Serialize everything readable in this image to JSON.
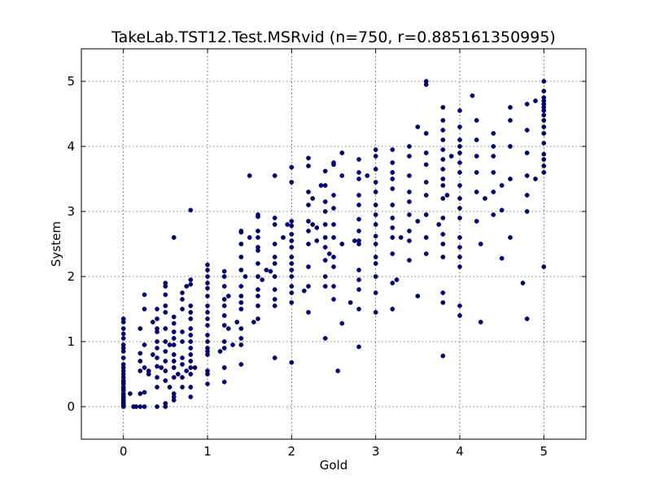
{
  "chart_data": {
    "type": "scatter",
    "title": "TakeLab.TST12.Test.MSRvid (n=750, r=0.885161350995)",
    "xlabel": "Gold",
    "ylabel": "System",
    "xlim": [
      -0.5,
      5.5
    ],
    "ylim": [
      -0.5,
      5.5
    ],
    "xticks": [
      "0",
      "1",
      "2",
      "3",
      "4",
      "5"
    ],
    "yticks": [
      "0",
      "1",
      "2",
      "3",
      "4",
      "5"
    ],
    "grid": true,
    "point_color": "#00007a",
    "points": [
      [
        0,
        0
      ],
      [
        0,
        0.02
      ],
      [
        0,
        0.05
      ],
      [
        0,
        0.08
      ],
      [
        0,
        0.12
      ],
      [
        0,
        0.15
      ],
      [
        0,
        0.2
      ],
      [
        0,
        0.25
      ],
      [
        0,
        0.3
      ],
      [
        0,
        0.35
      ],
      [
        0,
        0.4
      ],
      [
        0,
        0.45
      ],
      [
        0,
        0.5
      ],
      [
        0,
        0.55
      ],
      [
        0,
        0.65
      ],
      [
        0,
        0.75
      ],
      [
        0,
        0.85
      ],
      [
        0,
        0.95
      ],
      [
        0,
        1.05
      ],
      [
        0,
        1.12
      ],
      [
        0,
        1.2
      ],
      [
        0,
        1.3
      ],
      [
        0,
        1.35
      ],
      [
        0,
        0.1
      ],
      [
        0,
        0.18
      ],
      [
        0,
        0.28
      ],
      [
        0,
        0.38
      ],
      [
        0,
        0.6
      ],
      [
        0,
        0.9
      ],
      [
        0.08,
        0.2
      ],
      [
        0.12,
        0
      ],
      [
        0.15,
        0
      ],
      [
        0.2,
        0.55
      ],
      [
        0.2,
        0.7
      ],
      [
        0.2,
        0.82
      ],
      [
        0.2,
        0.2
      ],
      [
        0.2,
        1.2
      ],
      [
        0.2,
        0
      ],
      [
        0.25,
        0.95
      ],
      [
        0.25,
        1.5
      ],
      [
        0.25,
        1.72
      ],
      [
        0.25,
        0.6
      ],
      [
        0.25,
        0.22
      ],
      [
        0.25,
        0
      ],
      [
        0.3,
        0.5
      ],
      [
        0.3,
        0.55
      ],
      [
        0.35,
        0.8
      ],
      [
        0.35,
        1.3
      ],
      [
        0.4,
        0.3
      ],
      [
        0.4,
        0.45
      ],
      [
        0.4,
        0.62
      ],
      [
        0.4,
        0.75
      ],
      [
        0.4,
        0.9
      ],
      [
        0.4,
        1.0
      ],
      [
        0.4,
        1.15
      ],
      [
        0.4,
        1.35
      ],
      [
        0.4,
        1.5
      ],
      [
        0.4,
        1.2
      ],
      [
        0.4,
        0
      ],
      [
        0.45,
        0.6
      ],
      [
        0.5,
        0.05
      ],
      [
        0.5,
        0.4
      ],
      [
        0.5,
        0.55
      ],
      [
        0.5,
        0.7
      ],
      [
        0.5,
        0.85
      ],
      [
        0.5,
        1.0
      ],
      [
        0.5,
        1.2
      ],
      [
        0.5,
        1.45
      ],
      [
        0.5,
        1.55
      ],
      [
        0.5,
        1.72
      ],
      [
        0.5,
        1.85
      ],
      [
        0.5,
        1.9
      ],
      [
        0.5,
        0
      ],
      [
        0.55,
        0.3
      ],
      [
        0.55,
        0.95
      ],
      [
        0.6,
        0.1
      ],
      [
        0.6,
        0.15
      ],
      [
        0.6,
        0.2
      ],
      [
        0.6,
        0.45
      ],
      [
        0.6,
        0.6
      ],
      [
        0.6,
        0.7
      ],
      [
        0.6,
        0.8
      ],
      [
        0.6,
        0.95
      ],
      [
        0.6,
        1.05
      ],
      [
        0.6,
        1.15
      ],
      [
        0.6,
        1.28
      ],
      [
        0.6,
        1.38
      ],
      [
        0.6,
        2.6
      ],
      [
        0.65,
        0.5
      ],
      [
        0.7,
        0.45
      ],
      [
        0.7,
        0.65
      ],
      [
        0.7,
        0.75
      ],
      [
        0.7,
        1.0
      ],
      [
        0.7,
        1.15
      ],
      [
        0.7,
        1.5
      ],
      [
        0.7,
        1.65
      ],
      [
        0.7,
        1.75
      ],
      [
        0.7,
        0.3
      ],
      [
        0.75,
        1.85
      ],
      [
        0.75,
        0.55
      ],
      [
        0.8,
        0.15
      ],
      [
        0.8,
        0.3
      ],
      [
        0.8,
        0.5
      ],
      [
        0.8,
        0.6
      ],
      [
        0.8,
        0.7
      ],
      [
        0.8,
        0.8
      ],
      [
        0.8,
        0.9
      ],
      [
        0.8,
        1.0
      ],
      [
        0.8,
        1.1
      ],
      [
        0.8,
        1.2
      ],
      [
        0.8,
        1.35
      ],
      [
        0.8,
        1.45
      ],
      [
        0.8,
        1.55
      ],
      [
        0.8,
        1.88
      ],
      [
        0.8,
        1.95
      ],
      [
        0.8,
        3.02
      ],
      [
        0.85,
        0.6
      ],
      [
        1,
        0.35
      ],
      [
        1,
        0.5
      ],
      [
        1,
        0.55
      ],
      [
        1,
        0.8
      ],
      [
        1,
        0.85
      ],
      [
        1,
        0.9
      ],
      [
        1,
        1.0
      ],
      [
        1,
        1.1
      ],
      [
        1,
        1.25
      ],
      [
        1,
        1.35
      ],
      [
        1,
        1.45
      ],
      [
        1,
        1.55
      ],
      [
        1,
        1.7
      ],
      [
        1,
        1.82
      ],
      [
        1,
        1.9
      ],
      [
        1,
        2.0
      ],
      [
        1,
        2.1
      ],
      [
        1,
        2.18
      ],
      [
        1.15,
        0.85
      ],
      [
        1.2,
        0.38
      ],
      [
        1.2,
        0.6
      ],
      [
        1.2,
        0.9
      ],
      [
        1.2,
        1.0
      ],
      [
        1.2,
        1.25
      ],
      [
        1.2,
        1.4
      ],
      [
        1.2,
        1.55
      ],
      [
        1.2,
        1.65
      ],
      [
        1.2,
        1.85
      ],
      [
        1.2,
        2.0
      ],
      [
        1.2,
        2.08
      ],
      [
        1.25,
        1.2
      ],
      [
        1.25,
        1.7
      ],
      [
        1.3,
        0.95
      ],
      [
        1.35,
        1.3
      ],
      [
        1.4,
        0.65
      ],
      [
        1.4,
        0.95
      ],
      [
        1.4,
        1.05
      ],
      [
        1.4,
        1.2
      ],
      [
        1.4,
        1.5
      ],
      [
        1.4,
        1.6
      ],
      [
        1.4,
        1.7
      ],
      [
        1.4,
        1.85
      ],
      [
        1.4,
        2.1
      ],
      [
        1.4,
        2.3
      ],
      [
        1.4,
        2.5
      ],
      [
        1.4,
        2.68
      ],
      [
        1.4,
        2.7
      ],
      [
        1.45,
        2.0
      ],
      [
        1.5,
        3.55
      ],
      [
        1.5,
        2.6
      ],
      [
        1.55,
        1.3
      ],
      [
        1.6,
        1.35
      ],
      [
        1.6,
        1.55
      ],
      [
        1.6,
        1.7
      ],
      [
        1.6,
        1.8
      ],
      [
        1.6,
        2.0
      ],
      [
        1.6,
        2.2
      ],
      [
        1.6,
        2.4
      ],
      [
        1.6,
        2.45
      ],
      [
        1.6,
        2.6
      ],
      [
        1.6,
        2.7
      ],
      [
        1.6,
        2.92
      ],
      [
        1.6,
        2.95
      ],
      [
        1.65,
        1.95
      ],
      [
        1.7,
        2.1
      ],
      [
        1.75,
        2.08
      ],
      [
        1.8,
        0.75
      ],
      [
        1.8,
        1.55
      ],
      [
        1.8,
        1.65
      ],
      [
        1.8,
        1.8
      ],
      [
        1.8,
        2.0
      ],
      [
        1.8,
        2.2
      ],
      [
        1.8,
        2.3
      ],
      [
        1.8,
        2.5
      ],
      [
        1.8,
        2.8
      ],
      [
        1.8,
        2.9
      ],
      [
        1.8,
        3.55
      ],
      [
        1.9,
        2.6
      ],
      [
        1.95,
        2.8
      ],
      [
        2,
        0.68
      ],
      [
        2,
        1.6
      ],
      [
        2,
        1.75
      ],
      [
        2,
        1.85
      ],
      [
        2,
        2.0
      ],
      [
        2,
        2.1
      ],
      [
        2,
        2.2
      ],
      [
        2,
        2.3
      ],
      [
        2,
        2.45
      ],
      [
        2,
        2.55
      ],
      [
        2,
        2.65
      ],
      [
        2,
        2.78
      ],
      [
        2,
        2.85
      ],
      [
        2,
        3.45
      ],
      [
        2,
        3.68
      ],
      [
        2.15,
        1.78
      ],
      [
        2.2,
        1.45
      ],
      [
        2.2,
        1.85
      ],
      [
        2.2,
        2.15
      ],
      [
        2.2,
        2.5
      ],
      [
        2.2,
        2.7
      ],
      [
        2.2,
        2.85
      ],
      [
        2.2,
        3.1
      ],
      [
        2.2,
        3.3
      ],
      [
        2.2,
        3.7
      ],
      [
        2.2,
        3.82
      ],
      [
        2.25,
        2.8
      ],
      [
        2.25,
        3.2
      ],
      [
        2.3,
        2.55
      ],
      [
        2.3,
        2.75
      ],
      [
        2.35,
        3.4
      ],
      [
        2.4,
        1.05
      ],
      [
        2.4,
        1.85
      ],
      [
        2.4,
        2.0
      ],
      [
        2.4,
        2.25
      ],
      [
        2.4,
        2.45
      ],
      [
        2.4,
        2.6
      ],
      [
        2.4,
        2.8
      ],
      [
        2.4,
        3.0
      ],
      [
        2.4,
        3.15
      ],
      [
        2.4,
        3.4
      ],
      [
        2.4,
        3.62
      ],
      [
        2.45,
        2.35
      ],
      [
        2.5,
        1.65
      ],
      [
        2.5,
        1.85
      ],
      [
        2.5,
        2.15
      ],
      [
        2.5,
        2.3
      ],
      [
        2.5,
        2.6
      ],
      [
        2.5,
        2.8
      ],
      [
        2.5,
        3.05
      ],
      [
        2.5,
        3.25
      ],
      [
        2.5,
        3.72
      ],
      [
        2.5,
        3.75
      ],
      [
        2.55,
        0.55
      ],
      [
        2.6,
        1.28
      ],
      [
        2.6,
        2.5
      ],
      [
        2.6,
        3.55
      ],
      [
        2.6,
        3.9
      ],
      [
        2.7,
        1.6
      ],
      [
        2.8,
        0.92
      ],
      [
        2.8,
        1.5
      ],
      [
        2.8,
        1.8
      ],
      [
        2.8,
        1.95
      ],
      [
        2.8,
        2.1
      ],
      [
        2.8,
        2.5
      ],
      [
        2.8,
        2.55
      ],
      [
        2.8,
        2.7
      ],
      [
        2.8,
        2.88
      ],
      [
        2.8,
        3.1
      ],
      [
        2.8,
        3.25
      ],
      [
        2.8,
        3.5
      ],
      [
        2.8,
        3.6
      ],
      [
        2.8,
        3.8
      ],
      [
        2.75,
        2.55
      ],
      [
        2.9,
        3.55
      ],
      [
        3,
        1.45
      ],
      [
        3,
        1.75
      ],
      [
        3,
        2.0
      ],
      [
        3,
        2.2
      ],
      [
        3,
        2.3
      ],
      [
        3,
        2.5
      ],
      [
        3,
        2.62
      ],
      [
        3,
        2.8
      ],
      [
        3,
        2.95
      ],
      [
        3,
        3.1
      ],
      [
        3,
        3.3
      ],
      [
        3,
        3.45
      ],
      [
        3,
        3.65
      ],
      [
        3,
        3.85
      ],
      [
        3,
        3.95
      ],
      [
        3.2,
        1.5
      ],
      [
        3.2,
        1.9
      ],
      [
        3.2,
        2.35
      ],
      [
        3.2,
        2.6
      ],
      [
        3.2,
        2.75
      ],
      [
        3.2,
        2.9
      ],
      [
        3.2,
        3.1
      ],
      [
        3.2,
        3.35
      ],
      [
        3.2,
        3.5
      ],
      [
        3.2,
        3.6
      ],
      [
        3.2,
        3.75
      ],
      [
        3.2,
        3.95
      ],
      [
        3.25,
        1.95
      ],
      [
        3.3,
        2.6
      ],
      [
        3.4,
        2.55
      ],
      [
        3.4,
        2.7
      ],
      [
        3.4,
        2.95
      ],
      [
        3.4,
        3.15
      ],
      [
        3.4,
        3.3
      ],
      [
        3.4,
        3.55
      ],
      [
        3.4,
        3.85
      ],
      [
        3.4,
        4.0
      ],
      [
        3.4,
        2.25
      ],
      [
        3.5,
        1.7
      ],
      [
        3.5,
        2.85
      ],
      [
        3.5,
        4.3
      ],
      [
        3.6,
        2.35
      ],
      [
        3.6,
        2.6
      ],
      [
        3.6,
        2.95
      ],
      [
        3.6,
        3.25
      ],
      [
        3.6,
        3.45
      ],
      [
        3.6,
        3.72
      ],
      [
        3.6,
        3.9
      ],
      [
        3.6,
        4.2
      ],
      [
        3.6,
        4.95
      ],
      [
        3.6,
        5.0
      ],
      [
        3.75,
        2.8
      ],
      [
        3.8,
        0.78
      ],
      [
        3.8,
        1.6
      ],
      [
        3.8,
        1.75
      ],
      [
        3.8,
        2.3
      ],
      [
        3.8,
        2.5
      ],
      [
        3.8,
        2.65
      ],
      [
        3.8,
        2.9
      ],
      [
        3.8,
        3.2
      ],
      [
        3.8,
        3.4
      ],
      [
        3.8,
        3.5
      ],
      [
        3.8,
        3.65
      ],
      [
        3.8,
        3.8
      ],
      [
        3.8,
        3.95
      ],
      [
        3.8,
        4.1
      ],
      [
        3.8,
        4.25
      ],
      [
        3.8,
        4.4
      ],
      [
        3.8,
        4.6
      ],
      [
        3.85,
        3.25
      ],
      [
        3.9,
        3.85
      ],
      [
        4,
        1.4
      ],
      [
        4,
        1.55
      ],
      [
        4,
        2.15
      ],
      [
        4,
        2.3
      ],
      [
        4,
        2.45
      ],
      [
        4,
        2.6
      ],
      [
        4,
        2.9
      ],
      [
        4,
        3.05
      ],
      [
        4,
        3.2
      ],
      [
        4,
        3.4
      ],
      [
        4,
        3.6
      ],
      [
        4,
        3.75
      ],
      [
        4,
        3.9
      ],
      [
        4,
        4.0
      ],
      [
        4,
        4.1
      ],
      [
        4,
        4.3
      ],
      [
        4,
        4.55
      ],
      [
        4.15,
        4.78
      ],
      [
        4.2,
        2.85
      ],
      [
        4.2,
        3.3
      ],
      [
        4.2,
        3.6
      ],
      [
        4.2,
        3.85
      ],
      [
        4.2,
        4.1
      ],
      [
        4.2,
        4.4
      ],
      [
        4.25,
        1.3
      ],
      [
        4.25,
        2.5
      ],
      [
        4.3,
        3.2
      ],
      [
        4.4,
        2.95
      ],
      [
        4.4,
        3.3
      ],
      [
        4.4,
        3.6
      ],
      [
        4.4,
        3.85
      ],
      [
        4.4,
        4.0
      ],
      [
        4.4,
        4.2
      ],
      [
        4.5,
        3.02
      ],
      [
        4.5,
        3.4
      ],
      [
        4.5,
        2.28
      ],
      [
        4.6,
        2.6
      ],
      [
        4.6,
        3.5
      ],
      [
        4.6,
        4.0
      ],
      [
        4.6,
        4.4
      ],
      [
        4.6,
        4.6
      ],
      [
        4.75,
        1.9
      ],
      [
        4.8,
        1.35
      ],
      [
        4.8,
        3.0
      ],
      [
        4.8,
        3.25
      ],
      [
        4.8,
        3.55
      ],
      [
        4.8,
        3.9
      ],
      [
        4.8,
        4.25
      ],
      [
        4.8,
        4.65
      ],
      [
        4.9,
        3.5
      ],
      [
        4.9,
        4.7
      ],
      [
        5,
        2.15
      ],
      [
        5,
        3.6
      ],
      [
        5,
        3.7
      ],
      [
        5,
        3.8
      ],
      [
        5,
        3.88
      ],
      [
        5,
        4.05
      ],
      [
        5,
        4.2
      ],
      [
        5,
        4.3
      ],
      [
        5,
        4.4
      ],
      [
        5,
        4.48
      ],
      [
        5,
        4.55
      ],
      [
        5,
        4.6
      ],
      [
        5,
        4.65
      ],
      [
        5,
        4.7
      ],
      [
        5,
        4.75
      ],
      [
        5,
        4.85
      ],
      [
        5,
        5.0
      ]
    ]
  }
}
